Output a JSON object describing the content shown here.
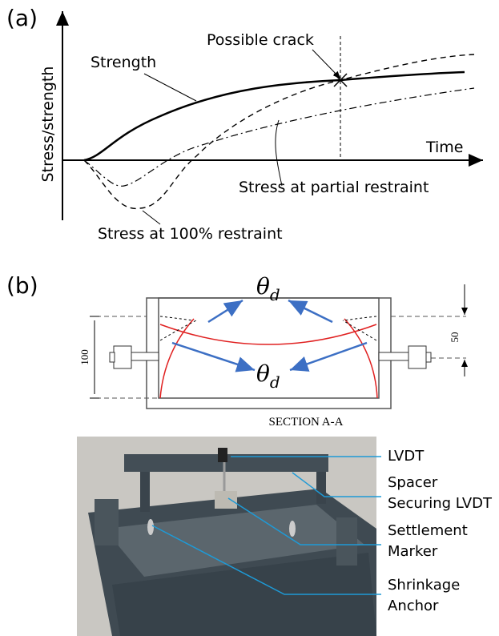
{
  "panel_a": {
    "label": "(a)",
    "y_axis": "Stress/strength",
    "x_axis": "Time",
    "strength": "Strength",
    "crack": "Possible crack",
    "partial": "Stress at partial restraint",
    "full": "Stress at 100% restraint"
  },
  "panel_b": {
    "label": "(b)",
    "theta": "θ",
    "theta_sub": "d",
    "dim_height": "100",
    "dim_offset": "50",
    "section": "SECTION A-A",
    "callouts": {
      "lvdt": "LVDT",
      "spacer_1": "Spacer",
      "spacer_2": "Securing LVDT",
      "marker_1": "Settlement",
      "marker_2": "Marker",
      "anchor_1": "Shrinkage",
      "anchor_2": "Anchor"
    }
  }
}
